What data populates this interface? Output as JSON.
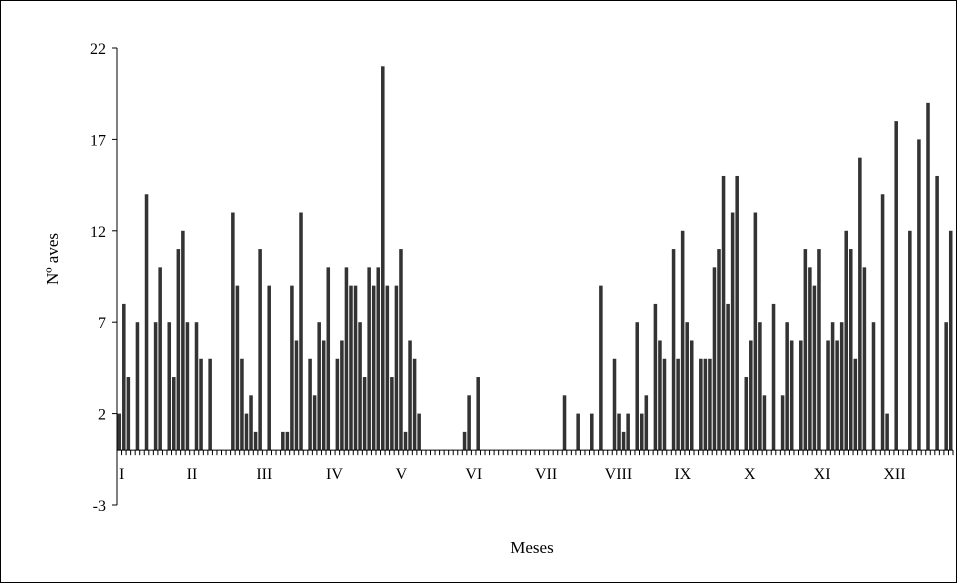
{
  "chart_data": {
    "type": "bar",
    "xlabel": "Meses",
    "ylabel": "Nº aves",
    "ylim": [
      -3,
      22
    ],
    "yticks": [
      -3,
      2,
      7,
      12,
      17,
      22
    ],
    "month_labels": [
      "I",
      "II",
      "III",
      "IV",
      "V",
      "VI",
      "VII",
      "VIII",
      "IX",
      "X",
      "XI",
      "XII"
    ],
    "bar_color": "#333333",
    "values": [
      2,
      8,
      4,
      0,
      7,
      0,
      14,
      0,
      7,
      10,
      0,
      7,
      4,
      11,
      12,
      7,
      0,
      7,
      5,
      0,
      5,
      0,
      0,
      0,
      0,
      13,
      9,
      5,
      2,
      3,
      1,
      11,
      0,
      9,
      0,
      0,
      1,
      1,
      9,
      6,
      13,
      0,
      5,
      3,
      7,
      6,
      10,
      0,
      5,
      6,
      10,
      9,
      9,
      7,
      4,
      10,
      9,
      10,
      21,
      9,
      4,
      9,
      11,
      1,
      6,
      5,
      2,
      0,
      0,
      0,
      0,
      0,
      0,
      0,
      0,
      0,
      1,
      3,
      0,
      4,
      0,
      0,
      0,
      0,
      0,
      0,
      0,
      0,
      0,
      0,
      0,
      0,
      0,
      0,
      0,
      0,
      0,
      0,
      3,
      0,
      0,
      2,
      0,
      0,
      2,
      0,
      9,
      0,
      0,
      5,
      2,
      1,
      2,
      0,
      7,
      2,
      3,
      0,
      8,
      6,
      5,
      0,
      11,
      5,
      12,
      7,
      6,
      0,
      5,
      5,
      5,
      10,
      11,
      15,
      8,
      13,
      15,
      0,
      4,
      6,
      13,
      7,
      3,
      0,
      8,
      0,
      3,
      7,
      6,
      0,
      6,
      11,
      10,
      9,
      11,
      0,
      6,
      7,
      6,
      7,
      12,
      11,
      5,
      16,
      10,
      0,
      7,
      0,
      14,
      2,
      0,
      18,
      0,
      0,
      12,
      0,
      17,
      0,
      19,
      0,
      15,
      0,
      7,
      12
    ]
  }
}
